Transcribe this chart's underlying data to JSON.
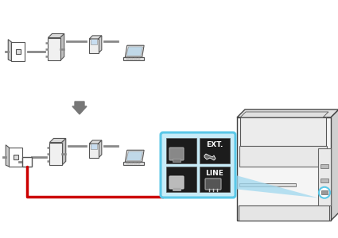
{
  "bg_color": "#ffffff",
  "gray": "#888888",
  "dark_gray": "#555555",
  "light_gray": "#eeeeee",
  "mid_gray": "#cccccc",
  "red": "#cc0000",
  "blue_border": "#5BC8E8",
  "blue_fill": "#c8ecf8",
  "blue_tri": "#a0d8ef",
  "black_cell": "#1c1c1c",
  "white": "#ffffff",
  "arrow_gray": "#777777",
  "outlet_gray": "#dddddd",
  "splitter_front": "#f0f0f0",
  "splitter_top": "#d8d8d8",
  "splitter_right": "#c0c0c0",
  "printer_body": "#f5f5f5",
  "printer_top3d": "#e0e0e0",
  "printer_right3d": "#d0d0d0"
}
